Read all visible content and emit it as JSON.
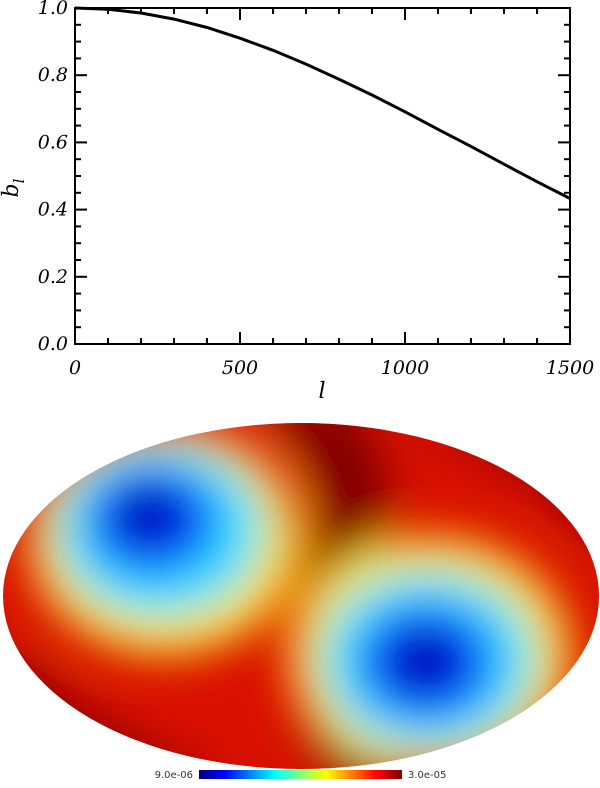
{
  "chart_data": [
    {
      "type": "line",
      "xlabel": "l",
      "ylabel": "b_l",
      "xlim": [
        0,
        1500
      ],
      "ylim": [
        0.0,
        1.0
      ],
      "xticks": [
        "0",
        "500",
        "1000",
        "1500"
      ],
      "yticks": [
        "0.0",
        "0.2",
        "0.4",
        "0.6",
        "0.8",
        "1.0"
      ],
      "grid": false,
      "series": [
        {
          "x": [
            0,
            100,
            200,
            300,
            400,
            500,
            600,
            700,
            800,
            900,
            1000,
            1100,
            1200,
            1300,
            1400,
            1500
          ],
          "y": [
            1.0,
            0.996,
            0.985,
            0.967,
            0.942,
            0.91,
            0.874,
            0.833,
            0.788,
            0.741,
            0.691,
            0.639,
            0.588,
            0.535,
            0.483,
            0.433
          ]
        }
      ],
      "color": "#000000"
    },
    {
      "type": "heatmap",
      "projection": "mollweide",
      "colormap": "jet",
      "colorbar": {
        "min_label": "9.0e-06",
        "max_label": "3.0e-05"
      },
      "pattern": "dipole-quadrupole: two low-value (blue) lobes in upper-left and lower-right, high-value (dark red) band running diagonally from top-center to bottom-center"
    }
  ]
}
